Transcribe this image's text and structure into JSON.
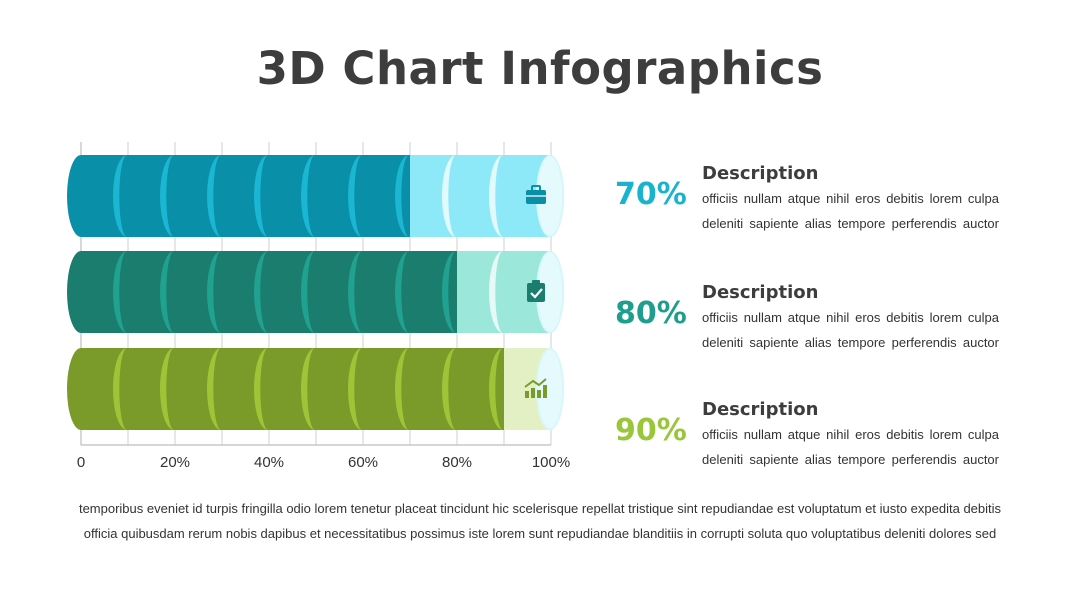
{
  "title": "3D Chart Infographics",
  "chart_data": {
    "type": "bar",
    "orientation": "horizontal",
    "style": "3d-cylinders",
    "xlim": [
      0,
      100
    ],
    "tick_labels": [
      "0",
      "20%",
      "40%",
      "60%",
      "80%",
      "100%"
    ],
    "grid": true,
    "series": [
      {
        "value": 70,
        "icon": "briefcase-icon",
        "dark": "#0a8fa8",
        "light": "#8de9f8",
        "accent": "#1dbad6"
      },
      {
        "value": 80,
        "icon": "clipboard-check-icon",
        "dark": "#1a7d6e",
        "light": "#9be8da",
        "accent": "#22a593"
      },
      {
        "value": 90,
        "icon": "growth-chart-icon",
        "dark": "#7a9b2a",
        "light": "#e2f0c4",
        "accent": "#a3c93a"
      }
    ]
  },
  "descriptions": [
    {
      "percent": "70%",
      "title": "Description",
      "text": "officiis nullam atque nihil eros debitis lorem culpa deleniti sapiente alias tempore perferendis auctor",
      "color": "#18b4ce"
    },
    {
      "percent": "80%",
      "title": "Description",
      "text": "officiis nullam atque nihil eros debitis lorem culpa deleniti sapiente alias tempore perferendis auctor",
      "color": "#1f9e8d"
    },
    {
      "percent": "90%",
      "title": "Description",
      "text": "officiis nullam atque nihil eros debitis lorem culpa deleniti sapiente alias tempore perferendis auctor",
      "color": "#9ac63a"
    }
  ],
  "footer": "temporibus eveniet id turpis fringilla odio lorem tenetur placeat tincidunt hic scelerisque repellat tristique sint repudiandae est voluptatum et iusto expedita debitis officia quibusdam rerum nobis dapibus et necessitatibus possimus iste lorem sunt repudiandae blanditiis in corrupti soluta quo voluptatibus deleniti dolores sed"
}
